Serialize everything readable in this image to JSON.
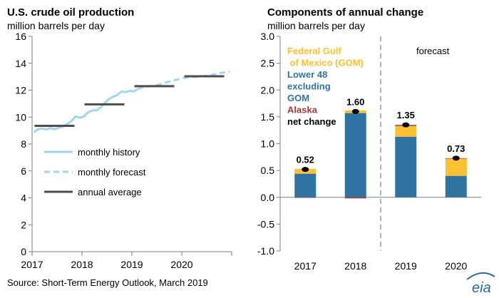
{
  "source_note": "Source: Short-Term Energy Outlook, March 2019",
  "logo_text": "eia",
  "colors": {
    "history": "#9fd5ef",
    "forecast": "#9fd5ef",
    "annual": "#4d4d4d",
    "gom": "#fcc133",
    "lower48": "#2f74a0",
    "alaska": "#a23b3b",
    "net": "#000000",
    "axis": "#7f7f7f"
  },
  "chart_data": [
    {
      "type": "line",
      "title": "U.S. crude oil production",
      "subtitle": "million barrels per day",
      "ylim": [
        0,
        16
      ],
      "yticks": [
        0,
        2,
        4,
        6,
        8,
        10,
        12,
        14,
        16
      ],
      "xlim": [
        2017,
        2021
      ],
      "xticks": [
        2017,
        2018,
        2019,
        2020
      ],
      "xtick_labels": [
        "2017",
        "2018",
        "2019",
        "2020"
      ],
      "grid": false,
      "legend": {
        "placement": "bottom-left",
        "entries": [
          {
            "key": "history",
            "label": "monthly history"
          },
          {
            "key": "forecast",
            "label": "monthly forecast"
          },
          {
            "key": "annual",
            "label": "annual average"
          }
        ]
      },
      "series": [
        {
          "key": "history",
          "style": "solid",
          "x": [
            2017.04,
            2017.12,
            2017.21,
            2017.29,
            2017.37,
            2017.46,
            2017.54,
            2017.62,
            2017.71,
            2017.79,
            2017.87,
            2017.96,
            2018.04,
            2018.12,
            2018.21,
            2018.29,
            2018.37,
            2018.46,
            2018.54,
            2018.62,
            2018.71,
            2018.79,
            2018.87,
            2018.96,
            2019.04,
            2019.12
          ],
          "y": [
            8.87,
            9.1,
            9.15,
            9.08,
            9.18,
            9.1,
            9.22,
            9.3,
            9.5,
            9.7,
            10.05,
            9.95,
            10.05,
            10.35,
            10.5,
            10.5,
            10.7,
            11.05,
            11.35,
            11.5,
            11.65,
            11.9,
            11.85,
            11.95,
            11.9,
            12.1
          ]
        },
        {
          "key": "forecast",
          "style": "dashed",
          "x": [
            2019.12,
            2019.21,
            2019.29,
            2019.37,
            2019.46,
            2019.54,
            2019.62,
            2019.71,
            2019.79,
            2019.87,
            2019.96,
            2020.04,
            2020.12,
            2020.21,
            2020.29,
            2020.37,
            2020.46,
            2020.54,
            2020.62,
            2020.71,
            2020.79,
            2020.87,
            2020.96
          ],
          "y": [
            12.1,
            12.2,
            12.25,
            12.3,
            12.35,
            12.4,
            12.5,
            12.6,
            12.7,
            12.75,
            12.85,
            12.9,
            12.95,
            12.98,
            13.0,
            13.02,
            13.05,
            13.1,
            13.15,
            13.2,
            13.28,
            13.33,
            13.38
          ]
        },
        {
          "key": "annual",
          "style": "segments",
          "segments": [
            {
              "x0": 2017.05,
              "x1": 2017.85,
              "y": 9.35
            },
            {
              "x0": 2018.05,
              "x1": 2018.85,
              "y": 10.95
            },
            {
              "x0": 2019.05,
              "x1": 2019.85,
              "y": 12.3
            },
            {
              "x0": 2020.05,
              "x1": 2020.85,
              "y": 13.03
            }
          ]
        }
      ]
    },
    {
      "type": "bar",
      "stacked": true,
      "title": "Components of annual change",
      "subtitle": "million barrels per day",
      "categories": [
        "2017",
        "2018",
        "2019",
        "2020"
      ],
      "ylim": [
        -1.0,
        3.0
      ],
      "yticks": [
        -1.0,
        -0.5,
        0.0,
        0.5,
        1.0,
        1.5,
        2.0,
        2.5,
        3.0
      ],
      "ytick_labels": [
        "-1.0",
        "-0.5",
        "0.0",
        "0.5",
        "1.0",
        "1.5",
        "2.0",
        "2.5",
        "3.0"
      ],
      "grid": false,
      "forecast_divider_after": "2018",
      "forecast_label": "forecast",
      "legend": {
        "placement": "top-left",
        "entries": [
          {
            "key": "gom",
            "label_lines": [
              "Federal Gulf",
              " of Mexico (GOM)"
            ]
          },
          {
            "key": "lower48",
            "label_lines": [
              "Lower 48",
              "excluding",
              "GOM"
            ]
          },
          {
            "key": "alaska",
            "label_lines": [
              "Alaska"
            ]
          },
          {
            "key": "net",
            "label_lines": [
              "net change"
            ]
          }
        ]
      },
      "series": [
        {
          "key": "lower48",
          "name": "Lower 48 excluding GOM",
          "values": [
            0.44,
            1.57,
            1.13,
            0.4
          ]
        },
        {
          "key": "gom",
          "name": "Federal Gulf of Mexico (GOM)",
          "values": [
            0.09,
            0.05,
            0.2,
            0.32
          ]
        },
        {
          "key": "alaska",
          "name": "Alaska",
          "values": [
            -0.01,
            -0.02,
            0.02,
            0.01
          ]
        }
      ],
      "net_change": {
        "values": [
          0.52,
          1.6,
          1.35,
          0.73
        ],
        "labels": [
          "0.52",
          "1.60",
          "1.35",
          "0.73"
        ]
      }
    }
  ]
}
